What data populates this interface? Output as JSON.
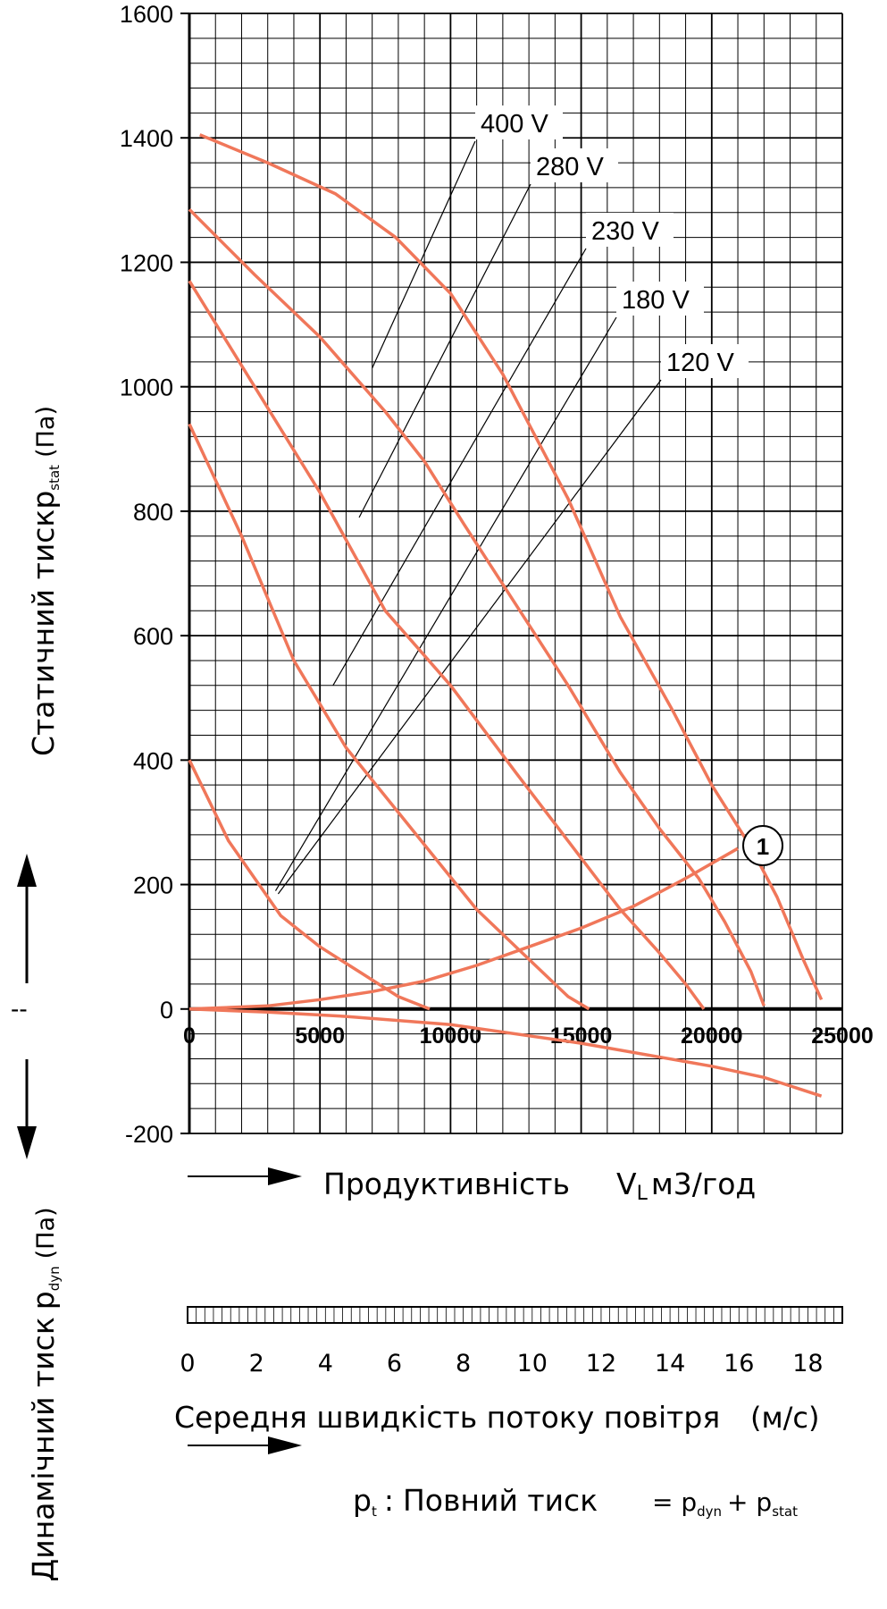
{
  "chart_data": {
    "type": "line",
    "xlabel": "Продуктивність",
    "xlabel_symbol": "V",
    "xlabel_symbol_sub": "L",
    "xlabel_unit": "м3/год",
    "ylabel_top_main": "Статичний  тиск",
    "ylabel_top_symbol": "p",
    "ylabel_top_sub": "stat",
    "ylabel_top_unit": "(Па)",
    "ylabel_bottom_main": "Динамічний тиск",
    "ylabel_bottom_symbol": "p",
    "ylabel_bottom_sub": "dyn",
    "ylabel_bottom_unit": "(Па)",
    "dashes": "--",
    "xlim": [
      0,
      25000
    ],
    "ylim": [
      -200,
      1600
    ],
    "grid": true,
    "x_ticks": [
      0,
      5000,
      10000,
      15000,
      20000,
      25000
    ],
    "y_ticks": [
      -200,
      0,
      200,
      400,
      600,
      800,
      1000,
      1200,
      1400,
      1600
    ],
    "line_color": "#f0775a",
    "series": [
      {
        "name": "400 V",
        "x": [
          400,
          3000,
          5600,
          7900,
          10000,
          12000,
          14500,
          16500,
          18500,
          20000,
          21500,
          22500,
          23500,
          24200
        ],
        "y": [
          1405,
          1360,
          1310,
          1240,
          1150,
          1020,
          820,
          630,
          480,
          360,
          260,
          180,
          80,
          15
        ]
      },
      {
        "name": "280 V",
        "x": [
          0,
          2500,
          5000,
          7500,
          9000,
          10500,
          12500,
          14500,
          16500,
          18000,
          19500,
          20500,
          21500,
          22000
        ],
        "y": [
          1285,
          1180,
          1080,
          960,
          880,
          780,
          650,
          520,
          380,
          290,
          210,
          140,
          60,
          5
        ]
      },
      {
        "name": "230 V",
        "x": [
          0,
          2500,
          5000,
          7500,
          10000,
          12500,
          14500,
          16500,
          18000,
          19000,
          19700
        ],
        "y": [
          1170,
          1000,
          830,
          640,
          520,
          380,
          270,
          160,
          90,
          40,
          0
        ]
      },
      {
        "name": "180 V",
        "x": [
          0,
          2000,
          4000,
          6000,
          8500,
          11000,
          13000,
          14500,
          15300
        ],
        "y": [
          940,
          760,
          560,
          420,
          290,
          160,
          80,
          20,
          0
        ]
      },
      {
        "name": "120 V",
        "x": [
          0,
          1500,
          3500,
          5000,
          6500,
          8000,
          9200
        ],
        "y": [
          400,
          270,
          150,
          100,
          60,
          20,
          0
        ]
      }
    ],
    "system_curve": {
      "marker": "1",
      "x": [
        0,
        3000,
        5000,
        7000,
        9000,
        11000,
        13000,
        15000,
        17000,
        19000,
        21000
      ],
      "y": [
        0,
        5,
        15,
        28,
        45,
        70,
        100,
        130,
        165,
        210,
        258
      ]
    },
    "dynamic_curve": {
      "x": [
        0,
        3000,
        6000,
        10000,
        15000,
        20000,
        22000,
        24200
      ],
      "y": [
        0,
        -5,
        -12,
        -25,
        -55,
        -92,
        -110,
        -140
      ]
    },
    "speed_axis": {
      "label": "Середня швидкість потоку повітря",
      "unit": "(м/с)",
      "ticks": [
        0,
        2,
        4,
        6,
        8,
        10,
        12,
        14,
        16,
        18
      ],
      "max": 19
    },
    "formula": {
      "lhs_symbol": "p",
      "lhs_sub": "t",
      "colon": ":",
      "text": "Повний тиск",
      "rhs_eq": "= p",
      "rhs_sub1": "dyn",
      "rhs_plus": "+ p",
      "rhs_sub2": "stat"
    }
  }
}
